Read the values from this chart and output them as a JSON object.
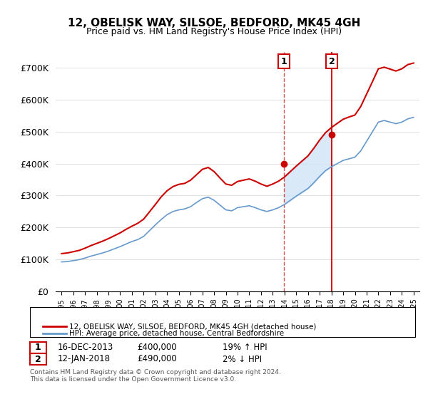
{
  "title": "12, OBELISK WAY, SILSOE, BEDFORD, MK45 4GH",
  "subtitle": "Price paid vs. HM Land Registry's House Price Index (HPI)",
  "ylabel": "",
  "xlabel": "",
  "ylim": [
    0,
    750000
  ],
  "yticks": [
    0,
    100000,
    200000,
    300000,
    400000,
    500000,
    600000,
    700000
  ],
  "ytick_labels": [
    "£0",
    "£100K",
    "£200K",
    "£300K",
    "£400K",
    "£500K",
    "£600K",
    "£700K"
  ],
  "sale1_date_num": 2013.96,
  "sale1_label": "16-DEC-2013",
  "sale1_price": 400000,
  "sale1_hpi_pct": "19% ↑ HPI",
  "sale2_date_num": 2018.04,
  "sale2_label": "12-JAN-2018",
  "sale2_price": 490000,
  "sale2_hpi_pct": "2% ↓ HPI",
  "legend_line1": "12, OBELISK WAY, SILSOE, BEDFORD, MK45 4GH (detached house)",
  "legend_line2": "HPI: Average price, detached house, Central Bedfordshire",
  "footer": "Contains HM Land Registry data © Crown copyright and database right 2024.\nThis data is licensed under the Open Government Licence v3.0.",
  "red_color": "#cc0000",
  "blue_color": "#6699cc",
  "shade_color": "#d0e4f7",
  "marker_color": "#cc0000",
  "vline_color": "#cc0000",
  "shade_alpha": 0.5,
  "annot_box_color": "#ffffff",
  "annot_box_edge": "#cc0000"
}
